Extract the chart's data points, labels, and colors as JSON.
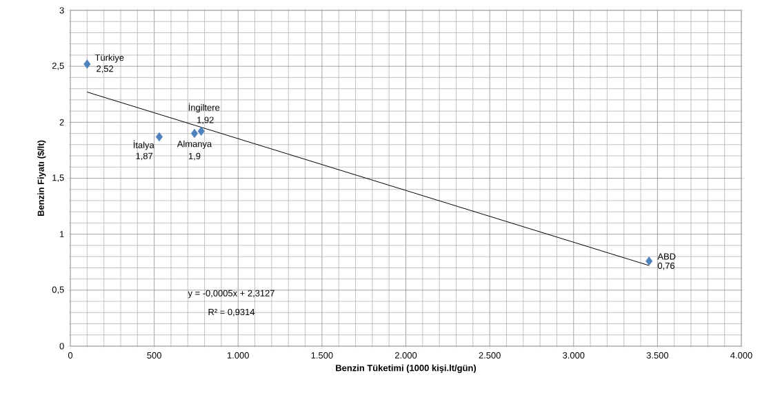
{
  "chart_data": {
    "type": "scatter",
    "xlabel": "Benzin Tüketimi (1000 kişi.lt/gün)",
    "ylabel": "Benzin Fiyatı ($/lt)",
    "series": [
      {
        "type": "scatter",
        "color": "#4f81bd",
        "marker": "diamond",
        "x": [
          100,
          530,
          740,
          780,
          3450
        ],
        "values": [
          2.52,
          1.87,
          1.9,
          1.92,
          0.76
        ],
        "value_labels": [
          "2,52",
          "1,87",
          "1,9",
          "1,92",
          "0,76"
        ]
      },
      {
        "type": "line",
        "color": "#000000",
        "marker": "none",
        "x": [
          100,
          3450
        ],
        "values": [
          2.27,
          0.72
        ]
      }
    ],
    "annotations": [
      {
        "text": "Türkiye",
        "x": 100,
        "y": 2.52
      },
      {
        "text": "İtalya",
        "x": 530,
        "y": 1.87
      },
      {
        "text": "Almanya",
        "x": 740,
        "y": 1.9
      },
      {
        "text": "İngiltere",
        "x": 780,
        "y": 1.92
      },
      {
        "text": "ABD",
        "x": 3450,
        "y": 0.76
      },
      "y = -0,0005x + 2,3127",
      "R² = 0,9314"
    ],
    "xlim": [
      0,
      4000
    ],
    "ylim": [
      0,
      3
    ],
    "xticks": [
      0,
      500,
      {
        "value": 1000,
        "label": "1.000"
      },
      {
        "value": 1500,
        "label": "1.500"
      },
      {
        "value": 2000,
        "label": "2.000"
      },
      {
        "value": 2500,
        "label": "2.500"
      },
      {
        "value": 3000,
        "label": "3.000"
      },
      {
        "value": 3500,
        "label": "3.500"
      },
      {
        "value": 4000,
        "label": "4.000"
      }
    ],
    "yticks": [
      0,
      {
        "value": 0.5,
        "label": "0,5"
      },
      1,
      {
        "value": 1.5,
        "label": "1,5"
      },
      2,
      {
        "value": 2.5,
        "label": "2,5"
      },
      3
    ],
    "grid": true
  }
}
